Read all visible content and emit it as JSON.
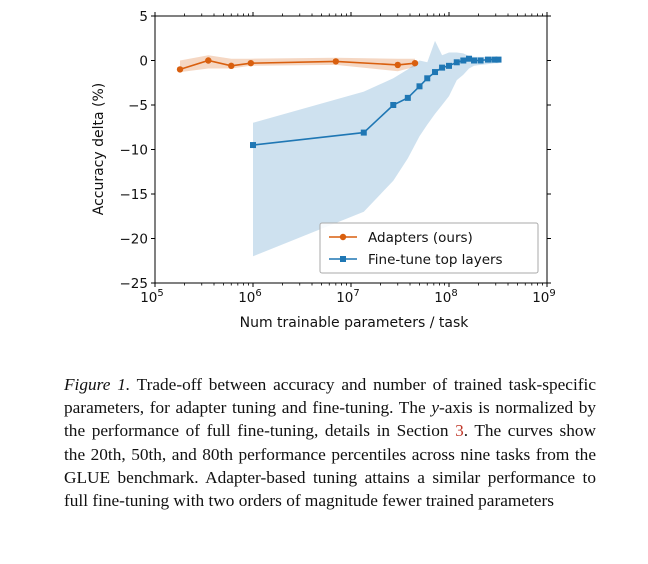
{
  "chart_data": {
    "type": "line",
    "xscale": "log",
    "xlim": [
      100000,
      1000000000
    ],
    "ylim": [
      -25,
      5
    ],
    "xlabel": "Num trainable parameters / task",
    "ylabel": "Accuracy delta (%)",
    "xticks": [
      {
        "value": 100000,
        "base": "10",
        "exp": "5"
      },
      {
        "value": 1000000,
        "base": "10",
        "exp": "6"
      },
      {
        "value": 10000000,
        "base": "10",
        "exp": "7"
      },
      {
        "value": 100000000,
        "base": "10",
        "exp": "8"
      },
      {
        "value": 1000000000,
        "base": "10",
        "exp": "9"
      }
    ],
    "yticks": [
      {
        "value": 5,
        "label": "5"
      },
      {
        "value": 0,
        "label": "0"
      },
      {
        "value": -5,
        "label": "−5"
      },
      {
        "value": -10,
        "label": "−10"
      },
      {
        "value": -15,
        "label": "−15"
      },
      {
        "value": -20,
        "label": "−20"
      },
      {
        "value": -25,
        "label": "−25"
      }
    ],
    "legend_position": "lower-right",
    "series": [
      {
        "name": "Adapters (ours)",
        "color": "#d95f0e",
        "marker": "circle",
        "x": [
          180000,
          350000,
          600000,
          950000,
          7000000,
          30000000,
          45000000
        ],
        "y": [
          -1.0,
          0.0,
          -0.6,
          -0.3,
          -0.1,
          -0.5,
          -0.3
        ],
        "band_upper": [
          0.0,
          0.6,
          0.2,
          0.2,
          0.3,
          0.2,
          0.2
        ],
        "band_lower": [
          -1.3,
          -0.9,
          -0.9,
          -0.6,
          -0.5,
          -1.2,
          -0.7
        ]
      },
      {
        "name": "Fine-tune top layers",
        "color": "#1f77b4",
        "marker": "square",
        "x": [
          1000000,
          13500000,
          27000000,
          38000000,
          50000000,
          60000000,
          72000000,
          85000000,
          100000000,
          120000000,
          140000000,
          160000000,
          180000000,
          210000000,
          250000000,
          290000000,
          320000000
        ],
        "y": [
          -9.5,
          -8.1,
          -5.0,
          -4.2,
          -2.9,
          -2.0,
          -1.3,
          -0.8,
          -0.6,
          -0.2,
          0.0,
          0.2,
          0.0,
          0.0,
          0.1,
          0.1,
          0.1
        ],
        "band_upper": [
          -7.0,
          -3.5,
          -2.0,
          -1.0,
          0.0,
          -0.2,
          2.2,
          0.6,
          0.9,
          0.9,
          0.8,
          0.5,
          0.4,
          0.4,
          0.4,
          0.3,
          0.3
        ],
        "band_lower": [
          -22.0,
          -17.0,
          -13.5,
          -11.0,
          -8.5,
          -7.2,
          -6.0,
          -5.0,
          -4.0,
          -2.2,
          -1.6,
          -0.9,
          -0.6,
          -0.5,
          -0.4,
          -0.3,
          -0.3
        ]
      }
    ]
  },
  "caption": {
    "label": "Figure 1.",
    "p1": " Trade-off between accuracy and number of trained task-specific parameters, for adapter tuning and fine-tuning. The ",
    "axis": "y",
    "p2": "-axis is normalized by the performance of full fine-tuning, details in Section ",
    "section_ref": "3",
    "p3": ". The curves show the 20th, 50th, and 80th performance percentiles across nine tasks from the GLUE benchmark. Adapter-based tuning attains a similar performance to full fine-tuning with two orders of magnitude fewer trained parameters"
  }
}
